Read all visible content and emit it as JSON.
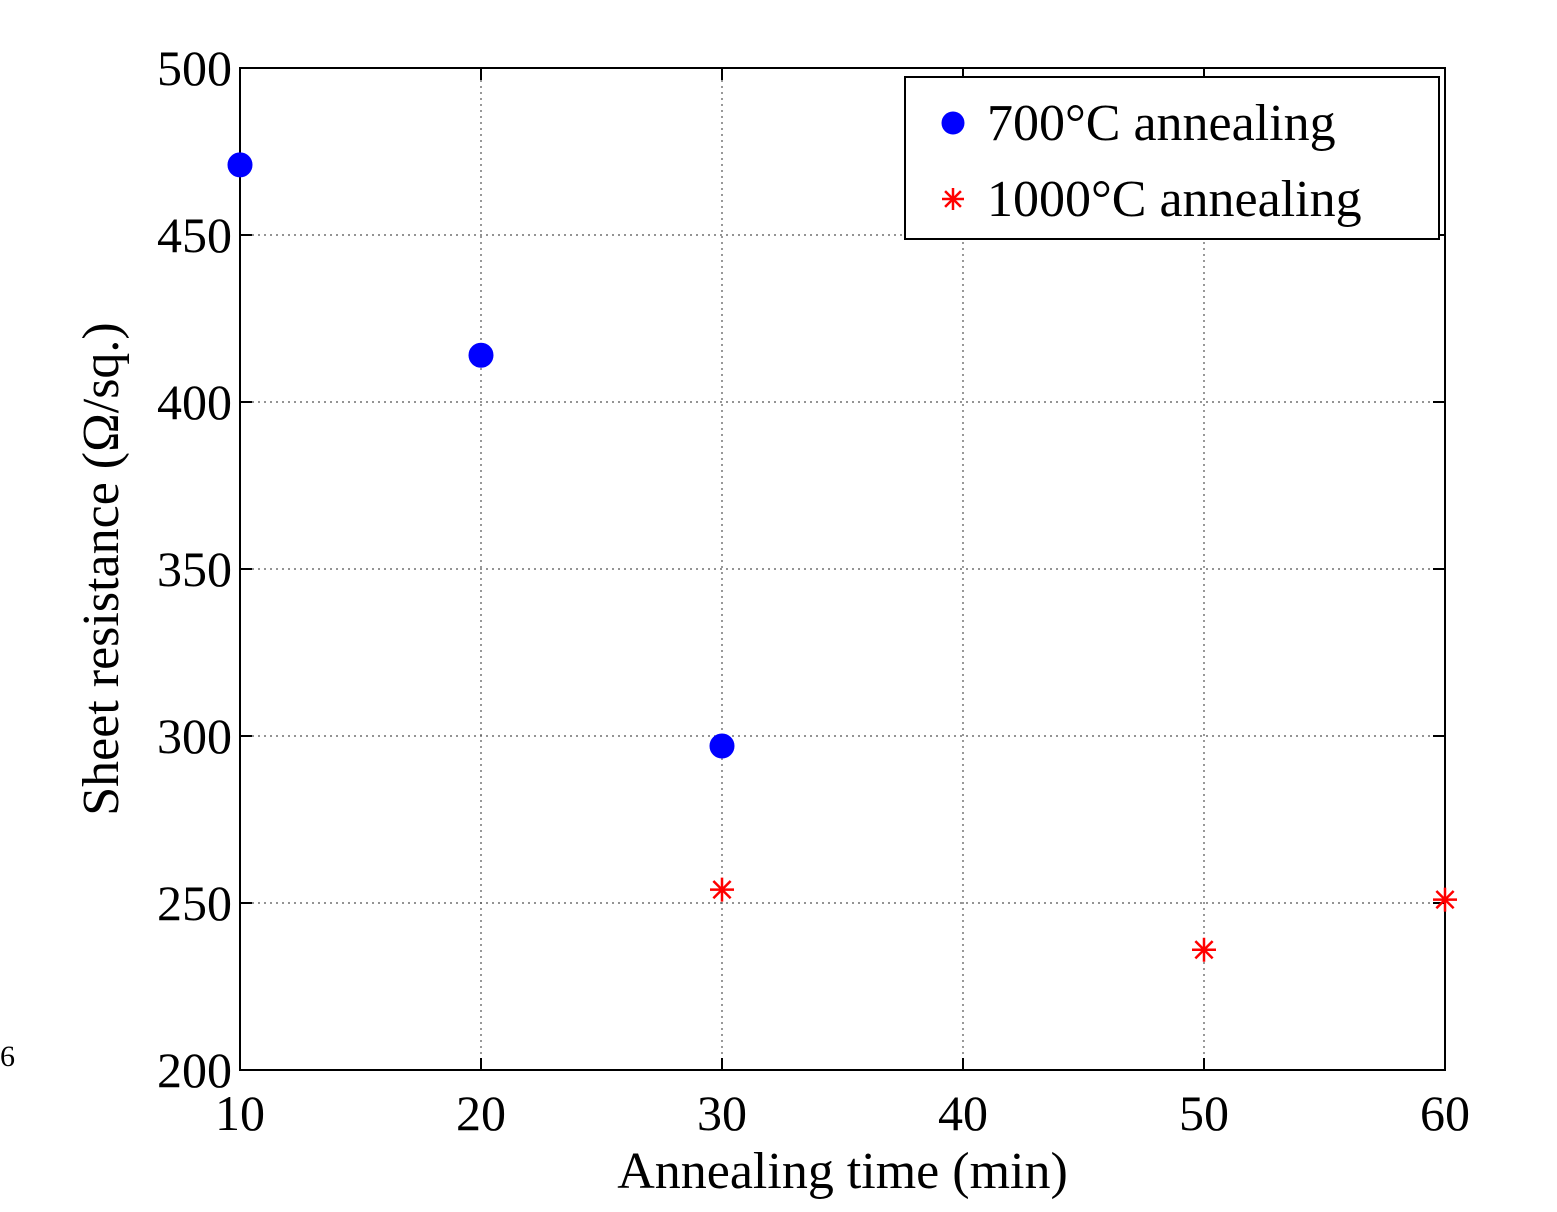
{
  "chart_data": {
    "type": "scatter",
    "title": "",
    "xlabel": "Annealing time (min)",
    "ylabel": "Sheet resistance (Ω/sq.)",
    "xlim": [
      10,
      60
    ],
    "ylim": [
      200,
      500
    ],
    "xticks": [
      10,
      20,
      30,
      40,
      50,
      60
    ],
    "yticks": [
      200,
      250,
      300,
      350,
      400,
      450,
      500
    ],
    "grid": true,
    "legend_position": "top-right",
    "series": [
      {
        "name": "700°C annealing",
        "marker": "filled-circle",
        "color": "#0000ff",
        "x": [
          10,
          20,
          30
        ],
        "y": [
          471,
          414,
          297
        ]
      },
      {
        "name": "1000°C annealing",
        "marker": "asterisk",
        "color": "#ff0000",
        "x": [
          30,
          50,
          60
        ],
        "y": [
          254,
          236,
          251
        ]
      }
    ]
  },
  "edge_text": "6"
}
